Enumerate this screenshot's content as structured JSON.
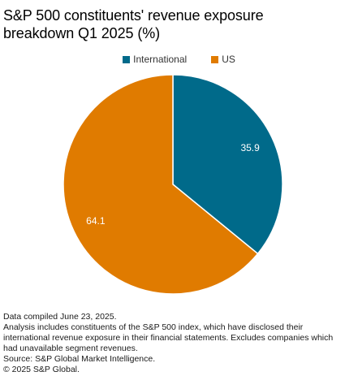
{
  "title_line1": "S&P 500 constituents' revenue exposure",
  "title_line2": "breakdown Q1 2025 (%)",
  "chart_data": {
    "type": "pie",
    "title": "S&P 500 constituents' revenue exposure breakdown Q1 2025 (%)",
    "slices": [
      {
        "name": "International",
        "value": 35.9,
        "label": "35.9",
        "color": "#006a8a"
      },
      {
        "name": "US",
        "value": 64.1,
        "label": "64.1",
        "color": "#e07b00"
      }
    ],
    "legend_position": "top"
  },
  "footnotes": {
    "line1": "Data compiled June 23, 2025.",
    "line2": "Analysis includes constituents of the S&P 500 index, which have disclosed their international revenue exposure in their financial statements. Excludes companies which had unavailable segment revenues.",
    "line3": "Source: S&P Global Market Intelligence.",
    "line4": "© 2025 S&P Global."
  }
}
